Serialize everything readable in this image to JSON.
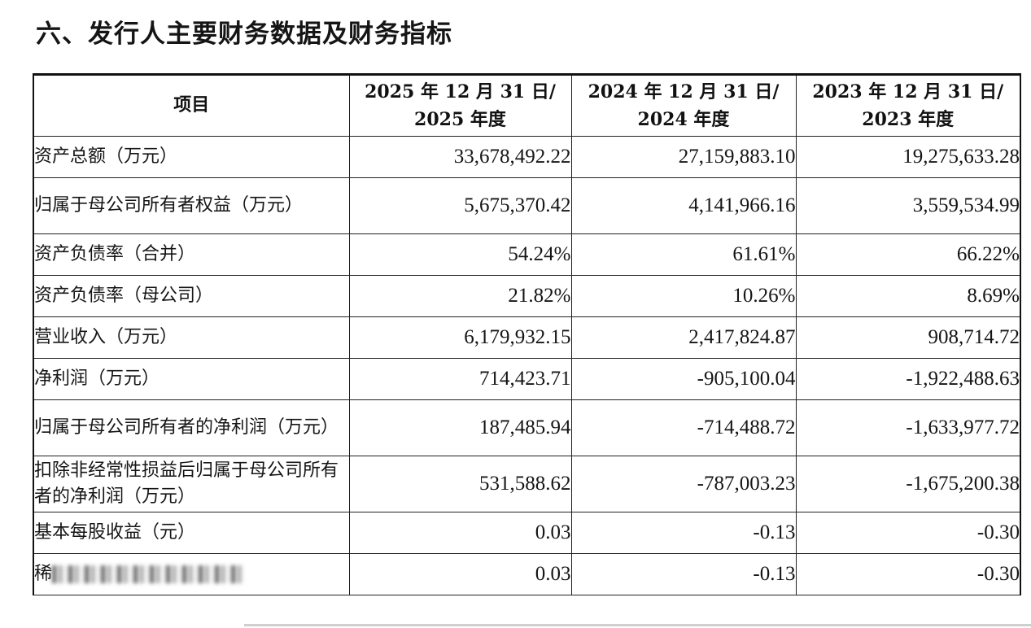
{
  "section_title": "六、发行人主要财务数据及财务指标",
  "table": {
    "headers": [
      "项目",
      "2025 年 12 月 31 日/\n2025 年度",
      "2024 年 12 月 31 日/\n2024 年度",
      "2023 年 12 月 31 日/\n2023 年度"
    ],
    "rows": [
      {
        "label": "资产总额（万元）",
        "values": [
          "33,678,492.22",
          "27,159,883.10",
          "19,275,633.28"
        ]
      },
      {
        "label": "归属于母公司所有者权益（万元）",
        "values": [
          "5,675,370.42",
          "4,141,966.16",
          "3,559,534.99"
        ]
      },
      {
        "label": "资产负债率（合并）",
        "values": [
          "54.24%",
          "61.61%",
          "66.22%"
        ]
      },
      {
        "label": "资产负债率（母公司）",
        "values": [
          "21.82%",
          "10.26%",
          "8.69%"
        ]
      },
      {
        "label": "营业收入（万元）",
        "values": [
          "6,179,932.15",
          "2,417,824.87",
          "908,714.72"
        ]
      },
      {
        "label": "净利润（万元）",
        "values": [
          "714,423.71",
          "-905,100.04",
          "-1,922,488.63"
        ]
      },
      {
        "label": "归属于母公司所有者的净利润（万元）",
        "values": [
          "187,485.94",
          "-714,488.72",
          "-1,633,977.72"
        ]
      },
      {
        "label": "扣除非经常性损益后归属于母公司所有者的净利润（万元）",
        "values": [
          "531,588.62",
          "-787,003.23",
          "-1,675,200.38"
        ]
      },
      {
        "label": "基本每股收益（元）",
        "values": [
          "0.03",
          "-0.13",
          "-0.30"
        ]
      },
      {
        "label": "稀",
        "values": [
          "0.03",
          "-0.13",
          "-0.30"
        ]
      }
    ]
  }
}
